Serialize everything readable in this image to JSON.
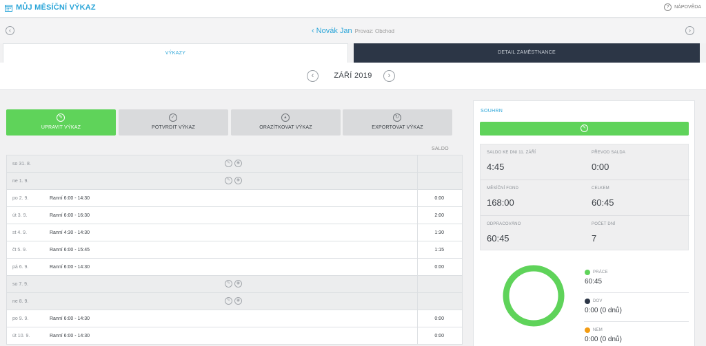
{
  "app": {
    "title": "MŮJ MĚSÍČNÍ VÝKAZ",
    "help_label": "NÁPOVĚDA"
  },
  "employee": {
    "name": "Novák Jan",
    "provoz": "Provoz: Obchod"
  },
  "tabs": [
    {
      "label": "VÝKAZY",
      "active": true
    },
    {
      "label": "DETAIL ZAMĚSTNANCE",
      "active": false
    }
  ],
  "month": {
    "label": "ZÁŘÍ 2019"
  },
  "actions": [
    {
      "label": "UPRAVIT VÝKAZ",
      "icon": "pencil-icon"
    },
    {
      "label": "POTVRDIT VÝKAZ",
      "icon": "approve-icon"
    },
    {
      "label": "ORAZÍTKOVAT VÝKAZ",
      "icon": "stamp-icon"
    },
    {
      "label": "EXPORTOVAT VÝKAZ",
      "icon": "export-icon"
    }
  ],
  "table": {
    "saldo_header": "SALDO",
    "rows": [
      {
        "day": "so 31. 8.",
        "shift": "",
        "saldo": "",
        "weekend": true
      },
      {
        "day": "ne 1. 9.",
        "shift": "",
        "saldo": "",
        "weekend": true
      },
      {
        "day": "po 2. 9.",
        "shift": "Ranní 6:00 - 14:30",
        "saldo": "0:00",
        "weekend": false
      },
      {
        "day": "út 3. 9.",
        "shift": "Ranní 6:00 - 16:30",
        "saldo": "2:00",
        "weekend": false
      },
      {
        "day": "st 4. 9.",
        "shift": "Ranní 4:30 - 14:30",
        "saldo": "1:30",
        "weekend": false
      },
      {
        "day": "čt 5. 9.",
        "shift": "Ranní 6:00 - 15:45",
        "saldo": "1:15",
        "weekend": false
      },
      {
        "day": "pá 6. 9.",
        "shift": "Ranní 6:00 - 14:30",
        "saldo": "0:00",
        "weekend": false
      },
      {
        "day": "so 7. 9.",
        "shift": "",
        "saldo": "",
        "weekend": true
      },
      {
        "day": "ne 8. 9.",
        "shift": "",
        "saldo": "",
        "weekend": true
      },
      {
        "day": "po 9. 9.",
        "shift": "Ranní 6:00 - 14:30",
        "saldo": "0:00",
        "weekend": false
      },
      {
        "day": "út 10. 9.",
        "shift": "Ranní 6:00 - 14:30",
        "saldo": "0:00",
        "weekend": false
      }
    ]
  },
  "summary": {
    "title": "SOUHRN",
    "stats": [
      {
        "label": "SALDO KE DNI 11. ZÁŘÍ",
        "value": "4:45"
      },
      {
        "label": "PŘEVOD SALDA",
        "value": "0:00"
      },
      {
        "label": "MĚSÍČNÍ FOND",
        "value": "168:00"
      },
      {
        "label": "CELKEM",
        "value": "60:45"
      },
      {
        "label": "ODPRACOVÁNO",
        "value": "60:45"
      },
      {
        "label": "POČET DNÍ",
        "value": "7"
      }
    ],
    "legend": [
      {
        "label": "PRÁCE",
        "value": "60:45",
        "color": "#5fd35a"
      },
      {
        "label": "DOV",
        "value": "0:00 (0 dnů)",
        "color": "#2c3646"
      },
      {
        "label": "NEM",
        "value": "0:00 (0 dnů)",
        "color": "#f39c12"
      }
    ],
    "donut_color": "#5fd35a"
  }
}
